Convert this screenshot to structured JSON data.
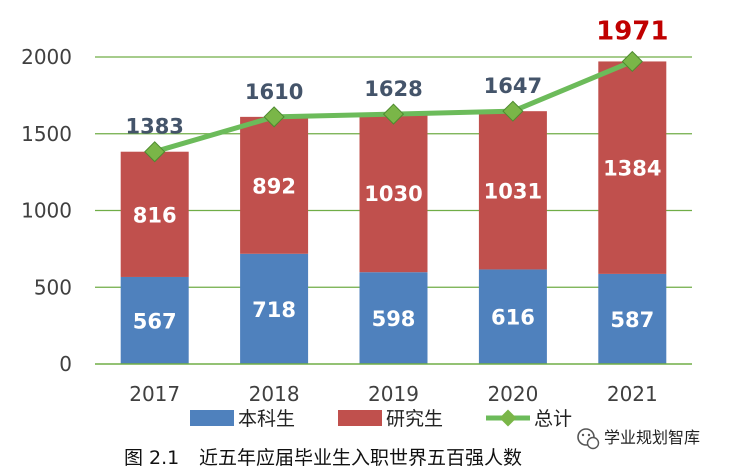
{
  "chart_data": {
    "type": "bar",
    "stacked": true,
    "categories": [
      "2017",
      "2018",
      "2019",
      "2020",
      "2021"
    ],
    "series": [
      {
        "name": "本科生",
        "values": [
          567,
          718,
          598,
          616,
          587
        ],
        "color": "#4f81bd"
      },
      {
        "name": "研究生",
        "values": [
          816,
          892,
          1030,
          1031,
          1384
        ],
        "color": "#c0504d"
      }
    ],
    "line_series": {
      "name": "总计",
      "values": [
        1383,
        1610,
        1628,
        1647,
        1971
      ],
      "color": "#6cbb5a",
      "marker_color": "#7ab648"
    },
    "ylim": [
      0,
      2000
    ],
    "yticks": [
      0,
      500,
      1000,
      1500,
      2000
    ],
    "grid": true,
    "legend": "bottom",
    "highlight_total_index": 4,
    "highlight_color": "#c00000"
  },
  "caption": {
    "fig_label": "图 2.1",
    "text": "近五年应届毕业生入职世界五百强人数"
  },
  "watermark": {
    "text": "学业规划智库"
  }
}
